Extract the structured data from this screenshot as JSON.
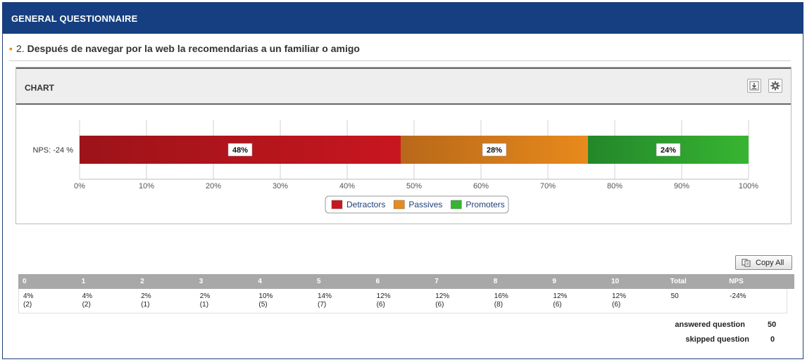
{
  "header": {
    "title": "GENERAL QUESTIONNAIRE"
  },
  "question": {
    "bullet": "▪",
    "number": "2.",
    "text": "Después de navegar por la web la recomendarias a un familiar o amigo"
  },
  "panel": {
    "title": "CHART",
    "icons": [
      "download-icon",
      "gear-icon"
    ]
  },
  "chart_data": {
    "type": "bar",
    "orientation": "horizontal-stacked",
    "categories": [
      "NPS: -24 %"
    ],
    "series": [
      {
        "name": "Detractors",
        "values": [
          48
        ],
        "label": "48%",
        "color": "#c8161f"
      },
      {
        "name": "Passives",
        "values": [
          28
        ],
        "label": "28%",
        "color": "#e88a1c"
      },
      {
        "name": "Promoters",
        "values": [
          24
        ],
        "label": "24%",
        "color": "#37b531"
      }
    ],
    "xticks": [
      "0%",
      "10%",
      "20%",
      "30%",
      "40%",
      "50%",
      "60%",
      "70%",
      "80%",
      "90%",
      "100%"
    ],
    "xlim": [
      0,
      100
    ],
    "grid": true,
    "legend": "bottom-center"
  },
  "copy_button": {
    "label": "Copy All",
    "icon": "copy-icon"
  },
  "table": {
    "headers": [
      "0",
      "1",
      "2",
      "3",
      "4",
      "5",
      "6",
      "7",
      "8",
      "9",
      "10",
      "Total",
      "NPS"
    ],
    "row": [
      {
        "pct": "4%",
        "count": "(2)"
      },
      {
        "pct": "4%",
        "count": "(2)"
      },
      {
        "pct": "2%",
        "count": "(1)"
      },
      {
        "pct": "2%",
        "count": "(1)"
      },
      {
        "pct": "10%",
        "count": "(5)"
      },
      {
        "pct": "14%",
        "count": "(7)"
      },
      {
        "pct": "12%",
        "count": "(6)"
      },
      {
        "pct": "12%",
        "count": "(6)"
      },
      {
        "pct": "16%",
        "count": "(8)"
      },
      {
        "pct": "12%",
        "count": "(6)"
      },
      {
        "pct": "12%",
        "count": "(6)"
      },
      {
        "pct": "50",
        "count": ""
      },
      {
        "pct": "-24%",
        "count": ""
      }
    ]
  },
  "summary": {
    "answered_label": "answered question",
    "answered_value": "50",
    "skipped_label": "skipped question",
    "skipped_value": "0"
  }
}
